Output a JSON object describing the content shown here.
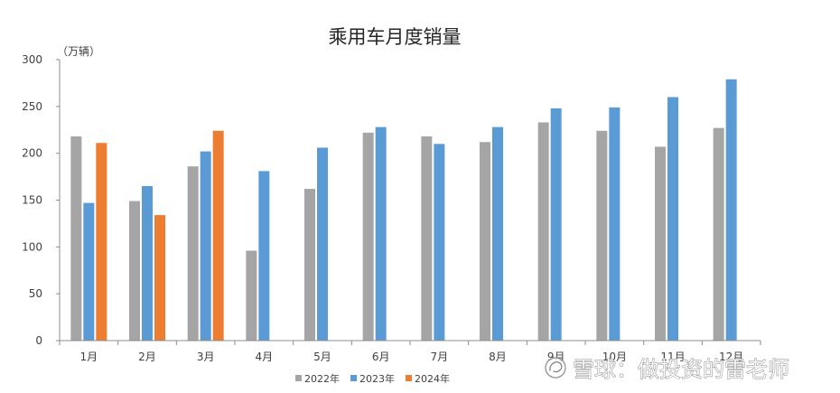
{
  "chart_data": {
    "type": "bar",
    "title": "乘用车月度销量",
    "ylabel": "（万辆）",
    "categories": [
      "1月",
      "2月",
      "3月",
      "4月",
      "5月",
      "6月",
      "7月",
      "8月",
      "9月",
      "10月",
      "11月",
      "12月"
    ],
    "series": [
      {
        "name": "2022年",
        "color": "#A5A5A5",
        "values": [
          218,
          149,
          186,
          96,
          162,
          222,
          218,
          212,
          233,
          224,
          207,
          227
        ]
      },
      {
        "name": "2023年",
        "color": "#5B9BD5",
        "values": [
          147,
          165,
          202,
          181,
          206,
          228,
          210,
          228,
          248,
          249,
          260,
          279
        ]
      },
      {
        "name": "2024年",
        "color": "#ED7D31",
        "values": [
          211,
          134,
          224,
          null,
          null,
          null,
          null,
          null,
          null,
          null,
          null,
          null
        ]
      }
    ],
    "ylim": [
      0,
      300
    ],
    "yticks": [
      0,
      50,
      100,
      150,
      200,
      250,
      300
    ],
    "grid": false,
    "legend_position": "bottom"
  },
  "watermark": {
    "text": "雪球：做投资的雷老师",
    "logo_icon": "snowball-logo-icon"
  }
}
